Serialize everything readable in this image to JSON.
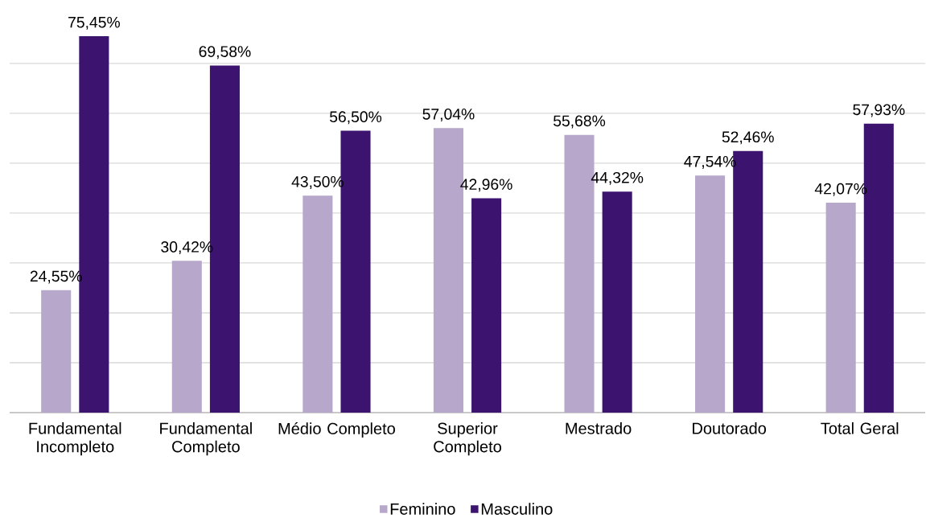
{
  "chart_data": {
    "type": "bar",
    "categories": [
      "Fundamental Incompleto",
      "Fundamental Completo",
      "Médio Completo",
      "Superior Completo",
      "Mestrado",
      "Doutorado",
      "Total Geral"
    ],
    "series": [
      {
        "name": "Feminino",
        "color": "#b6a7cb",
        "values": [
          24.55,
          30.42,
          43.5,
          57.04,
          55.68,
          47.54,
          42.07
        ],
        "value_labels": [
          "24,55%",
          "30,42%",
          "43,50%",
          "57,04%",
          "55,68%",
          "47,54%",
          "42,07%"
        ]
      },
      {
        "name": "Masculino",
        "color": "#3d1370",
        "values": [
          75.45,
          69.58,
          56.5,
          42.96,
          44.32,
          52.46,
          57.93
        ],
        "value_labels": [
          "75,45%",
          "69,58%",
          "56,50%",
          "42,96%",
          "44,32%",
          "52,46%",
          "57,93%"
        ]
      }
    ],
    "tick_labels": "x",
    "grid": "y",
    "legend": "bottom"
  }
}
